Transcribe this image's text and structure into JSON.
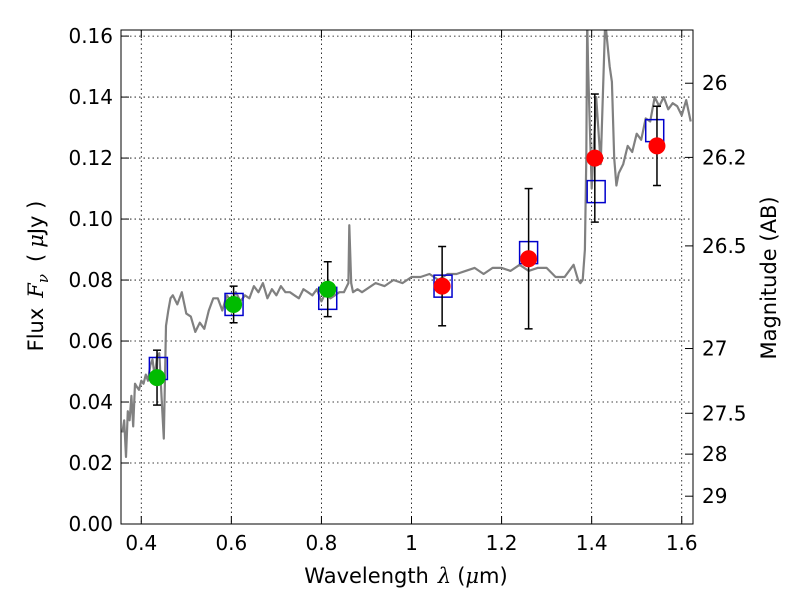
{
  "chart_data": {
    "type": "scatter",
    "xlabel": {
      "text": "Wavelength",
      "symbol": "λ",
      "unit_open": "(",
      "unit_mu": "μ",
      "unit_rest": "m)"
    },
    "ylabel": {
      "text": "Flux",
      "symbol": "F",
      "subscript": "ν",
      "unit_open": "(",
      "unit_mu": "μ",
      "unit_rest": "Jy )"
    },
    "y2label": "Magnitude (AB)",
    "xlim": [
      0.355,
      1.625
    ],
    "ylim": [
      0.0,
      0.162
    ],
    "grid": true,
    "x_ticks": [
      {
        "value": 0.4,
        "label": "0.4"
      },
      {
        "value": 0.6,
        "label": "0.6"
      },
      {
        "value": 0.8,
        "label": "0.8"
      },
      {
        "value": 1.0,
        "label": "1"
      },
      {
        "value": 1.2,
        "label": "1.2"
      },
      {
        "value": 1.4,
        "label": "1.4"
      },
      {
        "value": 1.6,
        "label": "1.6"
      }
    ],
    "y_ticks": [
      {
        "value": 0.0,
        "label": "0.00"
      },
      {
        "value": 0.02,
        "label": "0.02"
      },
      {
        "value": 0.04,
        "label": "0.04"
      },
      {
        "value": 0.06,
        "label": "0.06"
      },
      {
        "value": 0.08,
        "label": "0.08"
      },
      {
        "value": 0.1,
        "label": "0.10"
      },
      {
        "value": 0.12,
        "label": "0.12"
      },
      {
        "value": 0.14,
        "label": "0.14"
      },
      {
        "value": 0.16,
        "label": "0.16"
      }
    ],
    "y2_ticks": [
      {
        "value": 26,
        "label": "26"
      },
      {
        "value": 26.2,
        "label": "26.2"
      },
      {
        "value": 26.5,
        "label": "26.5"
      },
      {
        "value": 27,
        "label": "27"
      },
      {
        "value": 27.5,
        "label": "27.5"
      },
      {
        "value": 28,
        "label": "28"
      },
      {
        "value": 29,
        "label": "29"
      }
    ],
    "y2_zero_point_uJy": 0.3631,
    "model_spectrum": {
      "color": "#808080",
      "x": [
        0.358,
        0.362,
        0.366,
        0.37,
        0.374,
        0.378,
        0.382,
        0.386,
        0.39,
        0.395,
        0.4,
        0.405,
        0.41,
        0.415,
        0.42,
        0.425,
        0.43,
        0.435,
        0.44,
        0.445,
        0.45,
        0.455,
        0.46,
        0.465,
        0.47,
        0.48,
        0.49,
        0.5,
        0.51,
        0.52,
        0.53,
        0.54,
        0.55,
        0.56,
        0.57,
        0.58,
        0.59,
        0.6,
        0.61,
        0.62,
        0.63,
        0.64,
        0.65,
        0.66,
        0.67,
        0.68,
        0.69,
        0.7,
        0.71,
        0.72,
        0.73,
        0.74,
        0.75,
        0.76,
        0.77,
        0.78,
        0.79,
        0.8,
        0.81,
        0.82,
        0.83,
        0.84,
        0.85,
        0.86,
        0.862,
        0.866,
        0.87,
        0.88,
        0.89,
        0.9,
        0.92,
        0.94,
        0.96,
        0.98,
        1.0,
        1.02,
        1.04,
        1.06,
        1.08,
        1.1,
        1.12,
        1.14,
        1.16,
        1.18,
        1.2,
        1.22,
        1.24,
        1.26,
        1.28,
        1.3,
        1.32,
        1.34,
        1.36,
        1.37,
        1.375,
        1.38,
        1.385,
        1.388,
        1.39,
        1.392,
        1.395,
        1.4,
        1.41,
        1.42,
        1.43,
        1.44,
        1.445,
        1.45,
        1.455,
        1.46,
        1.47,
        1.48,
        1.49,
        1.5,
        1.51,
        1.52,
        1.53,
        1.54,
        1.55,
        1.56,
        1.57,
        1.58,
        1.59,
        1.6,
        1.61,
        1.62
      ],
      "y": [
        0.03,
        0.034,
        0.022,
        0.037,
        0.034,
        0.042,
        0.032,
        0.046,
        0.045,
        0.044,
        0.047,
        0.046,
        0.049,
        0.047,
        0.052,
        0.054,
        0.048,
        0.055,
        0.056,
        0.042,
        0.028,
        0.065,
        0.07,
        0.074,
        0.075,
        0.072,
        0.076,
        0.069,
        0.068,
        0.063,
        0.066,
        0.064,
        0.07,
        0.074,
        0.074,
        0.07,
        0.075,
        0.073,
        0.076,
        0.073,
        0.075,
        0.074,
        0.078,
        0.076,
        0.079,
        0.074,
        0.077,
        0.075,
        0.078,
        0.076,
        0.076,
        0.075,
        0.074,
        0.077,
        0.076,
        0.075,
        0.077,
        0.073,
        0.076,
        0.074,
        0.075,
        0.076,
        0.076,
        0.079,
        0.098,
        0.079,
        0.076,
        0.077,
        0.076,
        0.077,
        0.079,
        0.078,
        0.08,
        0.079,
        0.081,
        0.081,
        0.082,
        0.08,
        0.082,
        0.082,
        0.083,
        0.084,
        0.082,
        0.084,
        0.084,
        0.083,
        0.085,
        0.083,
        0.084,
        0.084,
        0.081,
        0.081,
        0.085,
        0.08,
        0.079,
        0.08,
        0.09,
        0.12,
        0.165,
        0.15,
        0.135,
        0.11,
        0.14,
        0.118,
        0.165,
        0.15,
        0.145,
        0.12,
        0.111,
        0.115,
        0.118,
        0.124,
        0.122,
        0.128,
        0.126,
        0.133,
        0.132,
        0.14,
        0.137,
        0.14,
        0.136,
        0.138,
        0.137,
        0.134,
        0.139,
        0.132
      ]
    },
    "series": [
      {
        "marker": "open-square",
        "color": "#0000cc",
        "points": [
          {
            "x": 0.438,
            "y": 0.051
          },
          {
            "x": 0.606,
            "y": 0.072
          },
          {
            "x": 0.814,
            "y": 0.074
          },
          {
            "x": 1.07,
            "y": 0.078
          },
          {
            "x": 1.26,
            "y": 0.089
          },
          {
            "x": 1.41,
            "y": 0.109
          },
          {
            "x": 1.54,
            "y": 0.129
          }
        ]
      },
      {
        "marker": "filled-circle",
        "color": "#00bb00",
        "points": [
          {
            "x": 0.435,
            "y": 0.048,
            "err": 0.009
          },
          {
            "x": 0.605,
            "y": 0.072,
            "err": 0.006
          },
          {
            "x": 0.814,
            "y": 0.077,
            "err": 0.009
          }
        ]
      },
      {
        "marker": "filled-circle",
        "color": "#ff0000",
        "points": [
          {
            "x": 1.068,
            "y": 0.078,
            "err": 0.013
          },
          {
            "x": 1.26,
            "y": 0.087,
            "err": 0.023
          },
          {
            "x": 1.407,
            "y": 0.12,
            "err": 0.021
          },
          {
            "x": 1.545,
            "y": 0.124,
            "err": 0.013
          }
        ]
      }
    ]
  }
}
